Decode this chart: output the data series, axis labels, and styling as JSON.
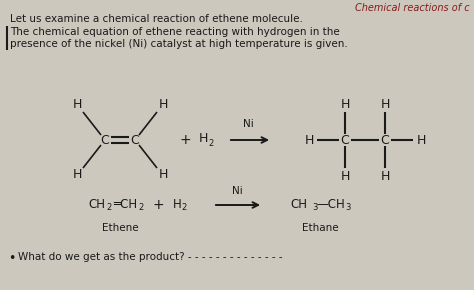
{
  "title_top_right": "Chemical reactions of c",
  "line1": "Let us examine a chemical reaction of ethene molecule.",
  "line2": "The chemical equation of ethene reacting with hydrogen in the",
  "line3": "presence of the nickel (Ni) catalyst at high temperature is given.",
  "bg_color": "#ccc8be",
  "text_color": "#1a1a1a",
  "red_color": "#8B1a1a",
  "label_ethene": "Ethene",
  "label_ethane": "Ethane",
  "catalyst_ni": "Ni",
  "question": "What do we get as the product? - - - - - - - - - - - - - -"
}
